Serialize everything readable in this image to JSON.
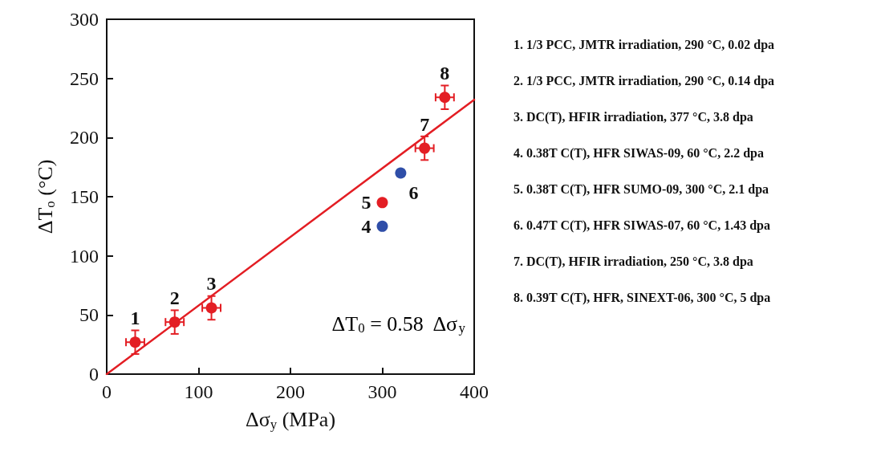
{
  "chart_data": {
    "type": "scatter",
    "xlabel": "Δσ$_{y}$ (MPa)",
    "ylabel": "ΔT$_{o}$ (°C)",
    "xlim": [
      0,
      400
    ],
    "xticks": [
      0,
      100,
      200,
      300,
      400
    ],
    "ylim": [
      0,
      300
    ],
    "yticks": [
      0,
      50,
      100,
      150,
      200,
      250,
      300
    ],
    "grid": false,
    "marker": "circle",
    "series": [
      {
        "type": "line",
        "color": "#e31e24",
        "x": [
          0,
          400
        ],
        "values": [
          0,
          232
        ],
        "marker": "none",
        "line_style": "solid"
      },
      {
        "color": "#e31e24",
        "x": [
          31,
          74,
          114,
          300,
          346,
          368
        ],
        "values": [
          27,
          44,
          56,
          145,
          191,
          234
        ],
        "errors": [
          10,
          10,
          10,
          null,
          10,
          10
        ],
        "xerrors": [
          10,
          10,
          10,
          null,
          10,
          10
        ]
      },
      {
        "color": "#2f4ea8",
        "x": [
          300,
          320
        ],
        "values": [
          125,
          170
        ]
      }
    ],
    "annotations": [
      {
        "text": "1",
        "x": 31,
        "y": 27
      },
      {
        "text": "2",
        "x": 74,
        "y": 44
      },
      {
        "text": "3",
        "x": 114,
        "y": 56
      },
      {
        "text": "4",
        "x": 300,
        "y": 125
      },
      {
        "text": "5",
        "x": 300,
        "y": 145
      },
      {
        "text": "6",
        "x": 320,
        "y": 170
      },
      {
        "text": "7",
        "x": 346,
        "y": 191
      },
      {
        "text": "8",
        "x": 368,
        "y": 234
      },
      "ΔT$_{0}$ = 0.58  Δσ$_{y}$",
      "1. 1/3 PCC, JMTR irradiation, 290 °C, 0.02 dpa",
      "2. 1/3 PCC, JMTR irradiation, 290 °C, 0.14 dpa",
      "3. DC(T), HFIR irradiation, 377 °C, 3.8 dpa",
      "4. 0.38T C(T), HFR SIWAS-09, 60 °C, 2.2 dpa",
      "5. 0.38T C(T), HFR SUMO-09, 300 °C, 2.1 dpa",
      "6. 0.47T C(T), HFR SIWAS-07, 60 °C, 1.43 dpa",
      "7. DC(T), HFIR irradiation, 250 °C, 3.8 dpa",
      "8. 0.39T C(T), HFR, SINEXT-06, 300 °C, 5 dpa"
    ]
  }
}
